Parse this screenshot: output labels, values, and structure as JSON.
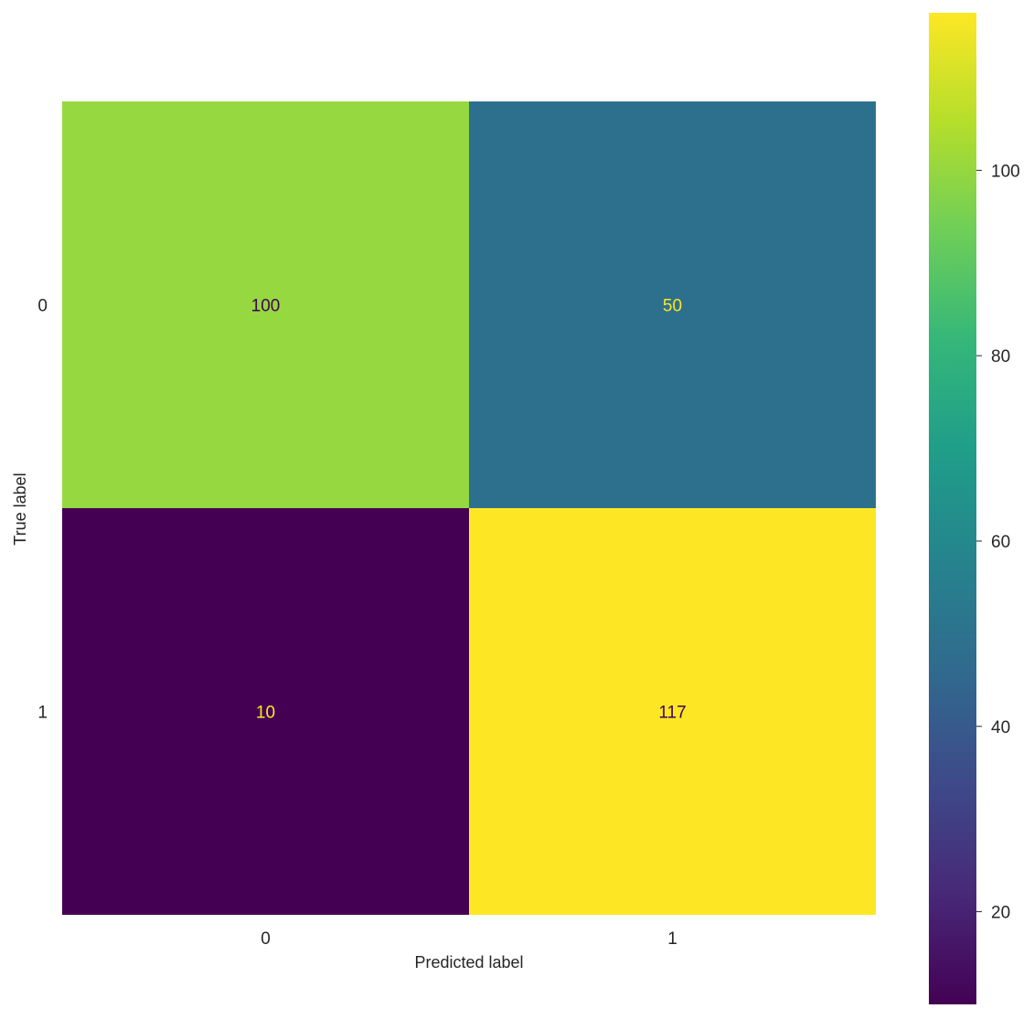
{
  "chart_data": {
    "type": "heatmap",
    "title": "",
    "xlabel": "Predicted label",
    "ylabel": "True label",
    "x_categories": [
      "0",
      "1"
    ],
    "y_categories": [
      "0",
      "1"
    ],
    "matrix": [
      [
        100,
        50
      ],
      [
        10,
        117
      ]
    ],
    "colormap": "viridis",
    "color_range": [
      10,
      117
    ],
    "colorbar_ticks": [
      20,
      40,
      60,
      80,
      100
    ],
    "grid": false,
    "colors": {
      "cell_00": "#95d840",
      "cell_01": "#2d708e",
      "cell_10": "#440154",
      "cell_11": "#fde725",
      "text_on_light": "#440154",
      "text_on_dark": "#fde725"
    }
  }
}
